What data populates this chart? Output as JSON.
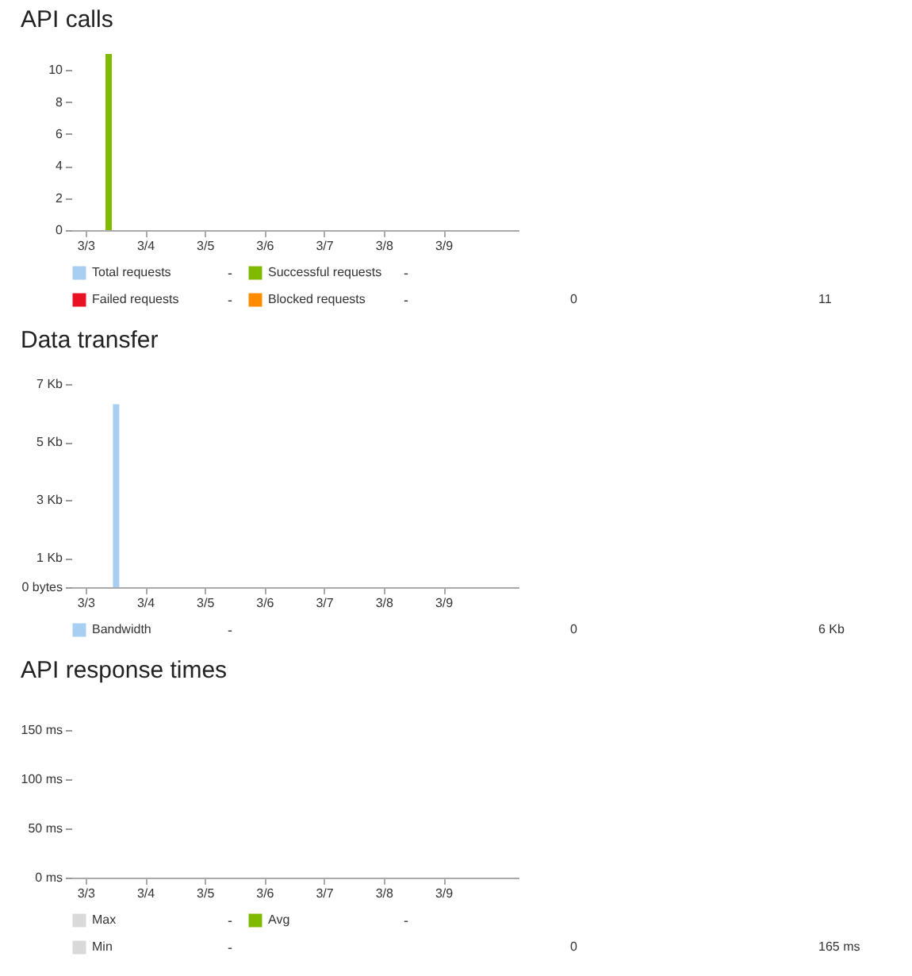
{
  "chart_data": [
    {
      "type": "bar",
      "title": "API calls",
      "categories": [
        "3/3",
        "3/4",
        "3/5",
        "3/6",
        "3/7",
        "3/8",
        "3/9"
      ],
      "series": [
        {
          "name": "Total requests",
          "color": "#a6cff2",
          "values": [
            null,
            null,
            null,
            null,
            null,
            null,
            null
          ]
        },
        {
          "name": "Successful requests",
          "color": "#7fba00",
          "values": [
            11,
            null,
            null,
            null,
            null,
            null,
            null
          ]
        },
        {
          "name": "Failed requests",
          "color": "#e81123",
          "values": [
            null,
            null,
            null,
            null,
            null,
            null,
            null
          ]
        },
        {
          "name": "Blocked requests",
          "color": "#ff8c00",
          "values": [
            null,
            null,
            null,
            null,
            null,
            null,
            null
          ]
        }
      ],
      "ylim": [
        0,
        11
      ],
      "yticks": [
        0,
        2,
        4,
        6,
        8,
        10
      ],
      "legend": "bottom",
      "annotations": [
        "-",
        "-",
        "-",
        "-"
      ]
    },
    {
      "type": "other",
      "annotations": [
        "0",
        "11"
      ]
    },
    {
      "type": "bar",
      "title": "Data transfer",
      "categories": [
        "3/3",
        "3/4",
        "3/5",
        "3/6",
        "3/7",
        "3/8",
        "3/9"
      ],
      "series": [
        {
          "name": "Bandwidth",
          "color": "#a6cff2",
          "values": [
            6.3,
            null,
            null,
            null,
            null,
            null,
            null
          ]
        }
      ],
      "ylim": [
        0,
        7
      ],
      "yticks": [
        {
          "value": 0,
          "label": "0 bytes"
        },
        {
          "value": 1,
          "label": "1 Kb"
        },
        {
          "value": 3,
          "label": "3 Kb"
        },
        {
          "value": 5,
          "label": "5 Kb"
        },
        {
          "value": 7,
          "label": "7 Kb"
        }
      ],
      "legend": "bottom",
      "annotations": [
        "-"
      ]
    },
    {
      "type": "other",
      "annotations": [
        "0",
        "6 Kb"
      ]
    },
    {
      "type": "bar",
      "title": "API response times",
      "categories": [
        "3/3",
        "3/4",
        "3/5",
        "3/6",
        "3/7",
        "3/8",
        "3/9"
      ],
      "series": [
        {
          "name": "Max",
          "color": "#d9d9d9",
          "values": [
            null,
            null,
            null,
            null,
            null,
            null,
            null
          ]
        },
        {
          "name": "Avg",
          "color": "#7fba00",
          "values": [
            null,
            null,
            null,
            null,
            null,
            null,
            null
          ]
        },
        {
          "name": "Min",
          "color": "#d9d9d9",
          "values": [
            null,
            null,
            null,
            null,
            null,
            null,
            null
          ]
        }
      ],
      "ylim": [
        0,
        150
      ],
      "yticks": [
        {
          "value": 0,
          "label": "0 ms"
        },
        {
          "value": 50,
          "label": "50 ms"
        },
        {
          "value": 100,
          "label": "100 ms"
        },
        {
          "value": 150,
          "label": "150 ms"
        }
      ],
      "legend": "bottom",
      "annotations": [
        "-",
        "-",
        "-"
      ]
    },
    {
      "type": "other",
      "annotations": [
        "0",
        "165 ms"
      ]
    }
  ]
}
